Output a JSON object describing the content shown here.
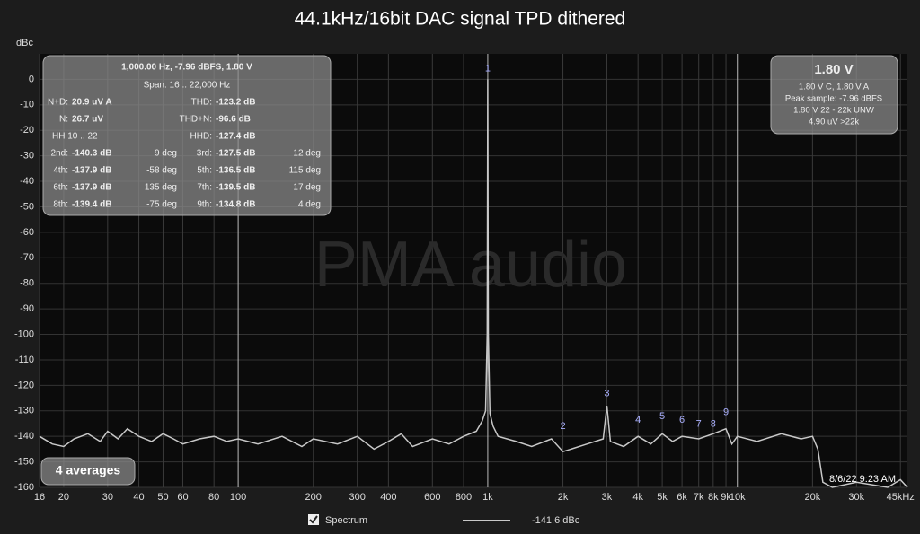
{
  "chart_data": {
    "type": "line",
    "title": "44.1kHz/16bit DAC signal TPD dithered",
    "y_label": "dBc",
    "log_x": true,
    "grid": true,
    "xlim": [
      16,
      48000
    ],
    "ylim": [
      -160,
      10
    ],
    "xticks": [
      16,
      20,
      30,
      40,
      50,
      60,
      80,
      100,
      200,
      300,
      400,
      600,
      800,
      {
        "value": 1000,
        "label": "1k"
      },
      {
        "value": 2000,
        "label": "2k"
      },
      {
        "value": 3000,
        "label": "3k"
      },
      {
        "value": 4000,
        "label": "4k"
      },
      {
        "value": 5000,
        "label": "5k"
      },
      {
        "value": 6000,
        "label": "6k"
      },
      {
        "value": 7000,
        "label": "7k"
      },
      {
        "value": 8000,
        "label": "8k"
      },
      {
        "value": 9000,
        "label": "9k"
      },
      {
        "value": 10000,
        "label": "10k"
      },
      {
        "value": 20000,
        "label": "20k"
      },
      {
        "value": 30000,
        "label": "30k"
      },
      {
        "value": 45000,
        "label": "45kHz"
      }
    ],
    "yticks": [
      0,
      -10,
      -20,
      -30,
      -40,
      -50,
      -60,
      -70,
      -80,
      -90,
      -100,
      -110,
      -120,
      -130,
      -140,
      -150,
      -160
    ],
    "series": [
      {
        "name": "Spectrum",
        "color": "#c8c8c8",
        "legend_value": "-141.6 dBc",
        "x": [
          16,
          18,
          20,
          22,
          25,
          28,
          30,
          33,
          36,
          40,
          45,
          50,
          55,
          60,
          70,
          80,
          90,
          100,
          120,
          150,
          180,
          200,
          250,
          300,
          350,
          400,
          450,
          500,
          600,
          700,
          800,
          900,
          950,
          980,
          995,
          1000,
          1005,
          1020,
          1050,
          1100,
          1300,
          1500,
          1800,
          2000,
          2500,
          2900,
          3000,
          3100,
          3500,
          4000,
          4500,
          5000,
          5500,
          6000,
          7000,
          8000,
          9000,
          9500,
          10000,
          12000,
          15000,
          18000,
          20000,
          21000,
          22000,
          24000,
          30000,
          40000,
          45000,
          48000
        ],
        "values": [
          -140,
          -143,
          -144,
          -141,
          -139,
          -142,
          -138,
          -141,
          -137,
          -140,
          -142,
          -139,
          -141,
          -143,
          -141,
          -140,
          -142,
          -141,
          -143,
          -140,
          -144,
          -141,
          -143,
          -140,
          -145,
          -142,
          -139,
          -144,
          -141,
          -143,
          -140,
          -138,
          -134,
          -130,
          -100,
          0,
          -100,
          -131,
          -136,
          -140,
          -142,
          -144,
          -141,
          -146,
          -143,
          -141,
          -128,
          -142,
          -144,
          -140,
          -143,
          -139,
          -142,
          -140,
          -141,
          -139,
          -137,
          -143,
          -140,
          -142,
          -139,
          -141,
          -140,
          -145,
          -158,
          -160,
          -158,
          -160,
          -157,
          -160
        ]
      }
    ],
    "harmonic_markers": {
      "labels": [
        1,
        2,
        3,
        4,
        5,
        6,
        7,
        8,
        9
      ],
      "x": [
        1000,
        2000,
        3000,
        4000,
        5000,
        6000,
        7000,
        8000,
        9000
      ],
      "y": [
        0,
        -140.3,
        -127.5,
        -137.9,
        -136.5,
        -137.9,
        -139.5,
        -139.4,
        -134.8
      ]
    },
    "watermark": "PMA audio",
    "date": "8/6/22 9:23 AM",
    "averages": "4 averages"
  },
  "info_left": {
    "header": "1,000.00 Hz, -7.96 dBFS, 1.80 V",
    "span": "Span: 16 .. 22,000 Hz",
    "metric_rows": [
      [
        {
          "label": "N+D:",
          "value": "20.9 uV A"
        },
        {
          "label": "THD:",
          "value": "-123.2 dB"
        }
      ],
      [
        {
          "label": "N:",
          "value": "26.7 uV"
        },
        {
          "label": "THD+N:",
          "value": "-96.6 dB"
        }
      ],
      [
        {
          "label": "HH 10 .. 22"
        },
        {
          "label": "HHD:",
          "value": "-127.4 dB"
        }
      ]
    ],
    "harmonic_rows": [
      [
        {
          "label": "2nd:",
          "value": "-140.3 dB",
          "phase": "-9 deg"
        },
        {
          "label": "3rd:",
          "value": "-127.5 dB",
          "phase": "12 deg"
        }
      ],
      [
        {
          "label": "4th:",
          "value": "-137.9 dB",
          "phase": "-58 deg"
        },
        {
          "label": "5th:",
          "value": "-136.5 dB",
          "phase": "115 deg"
        }
      ],
      [
        {
          "label": "6th:",
          "value": "-137.9 dB",
          "phase": "135 deg"
        },
        {
          "label": "7th:",
          "value": "-139.5 dB",
          "phase": "17 deg"
        }
      ],
      [
        {
          "label": "8th:",
          "value": "-139.4 dB",
          "phase": "-75 deg"
        },
        {
          "label": "9th:",
          "value": "-134.8 dB",
          "phase": "4 deg"
        }
      ]
    ]
  },
  "info_right": {
    "level": "1.80 V",
    "lines": [
      "1.80 V C, 1.80 V A",
      "Peak sample: -7.96 dBFS",
      "1.80 V 22 - 22k UNW",
      "4.90 uV >22k"
    ]
  }
}
